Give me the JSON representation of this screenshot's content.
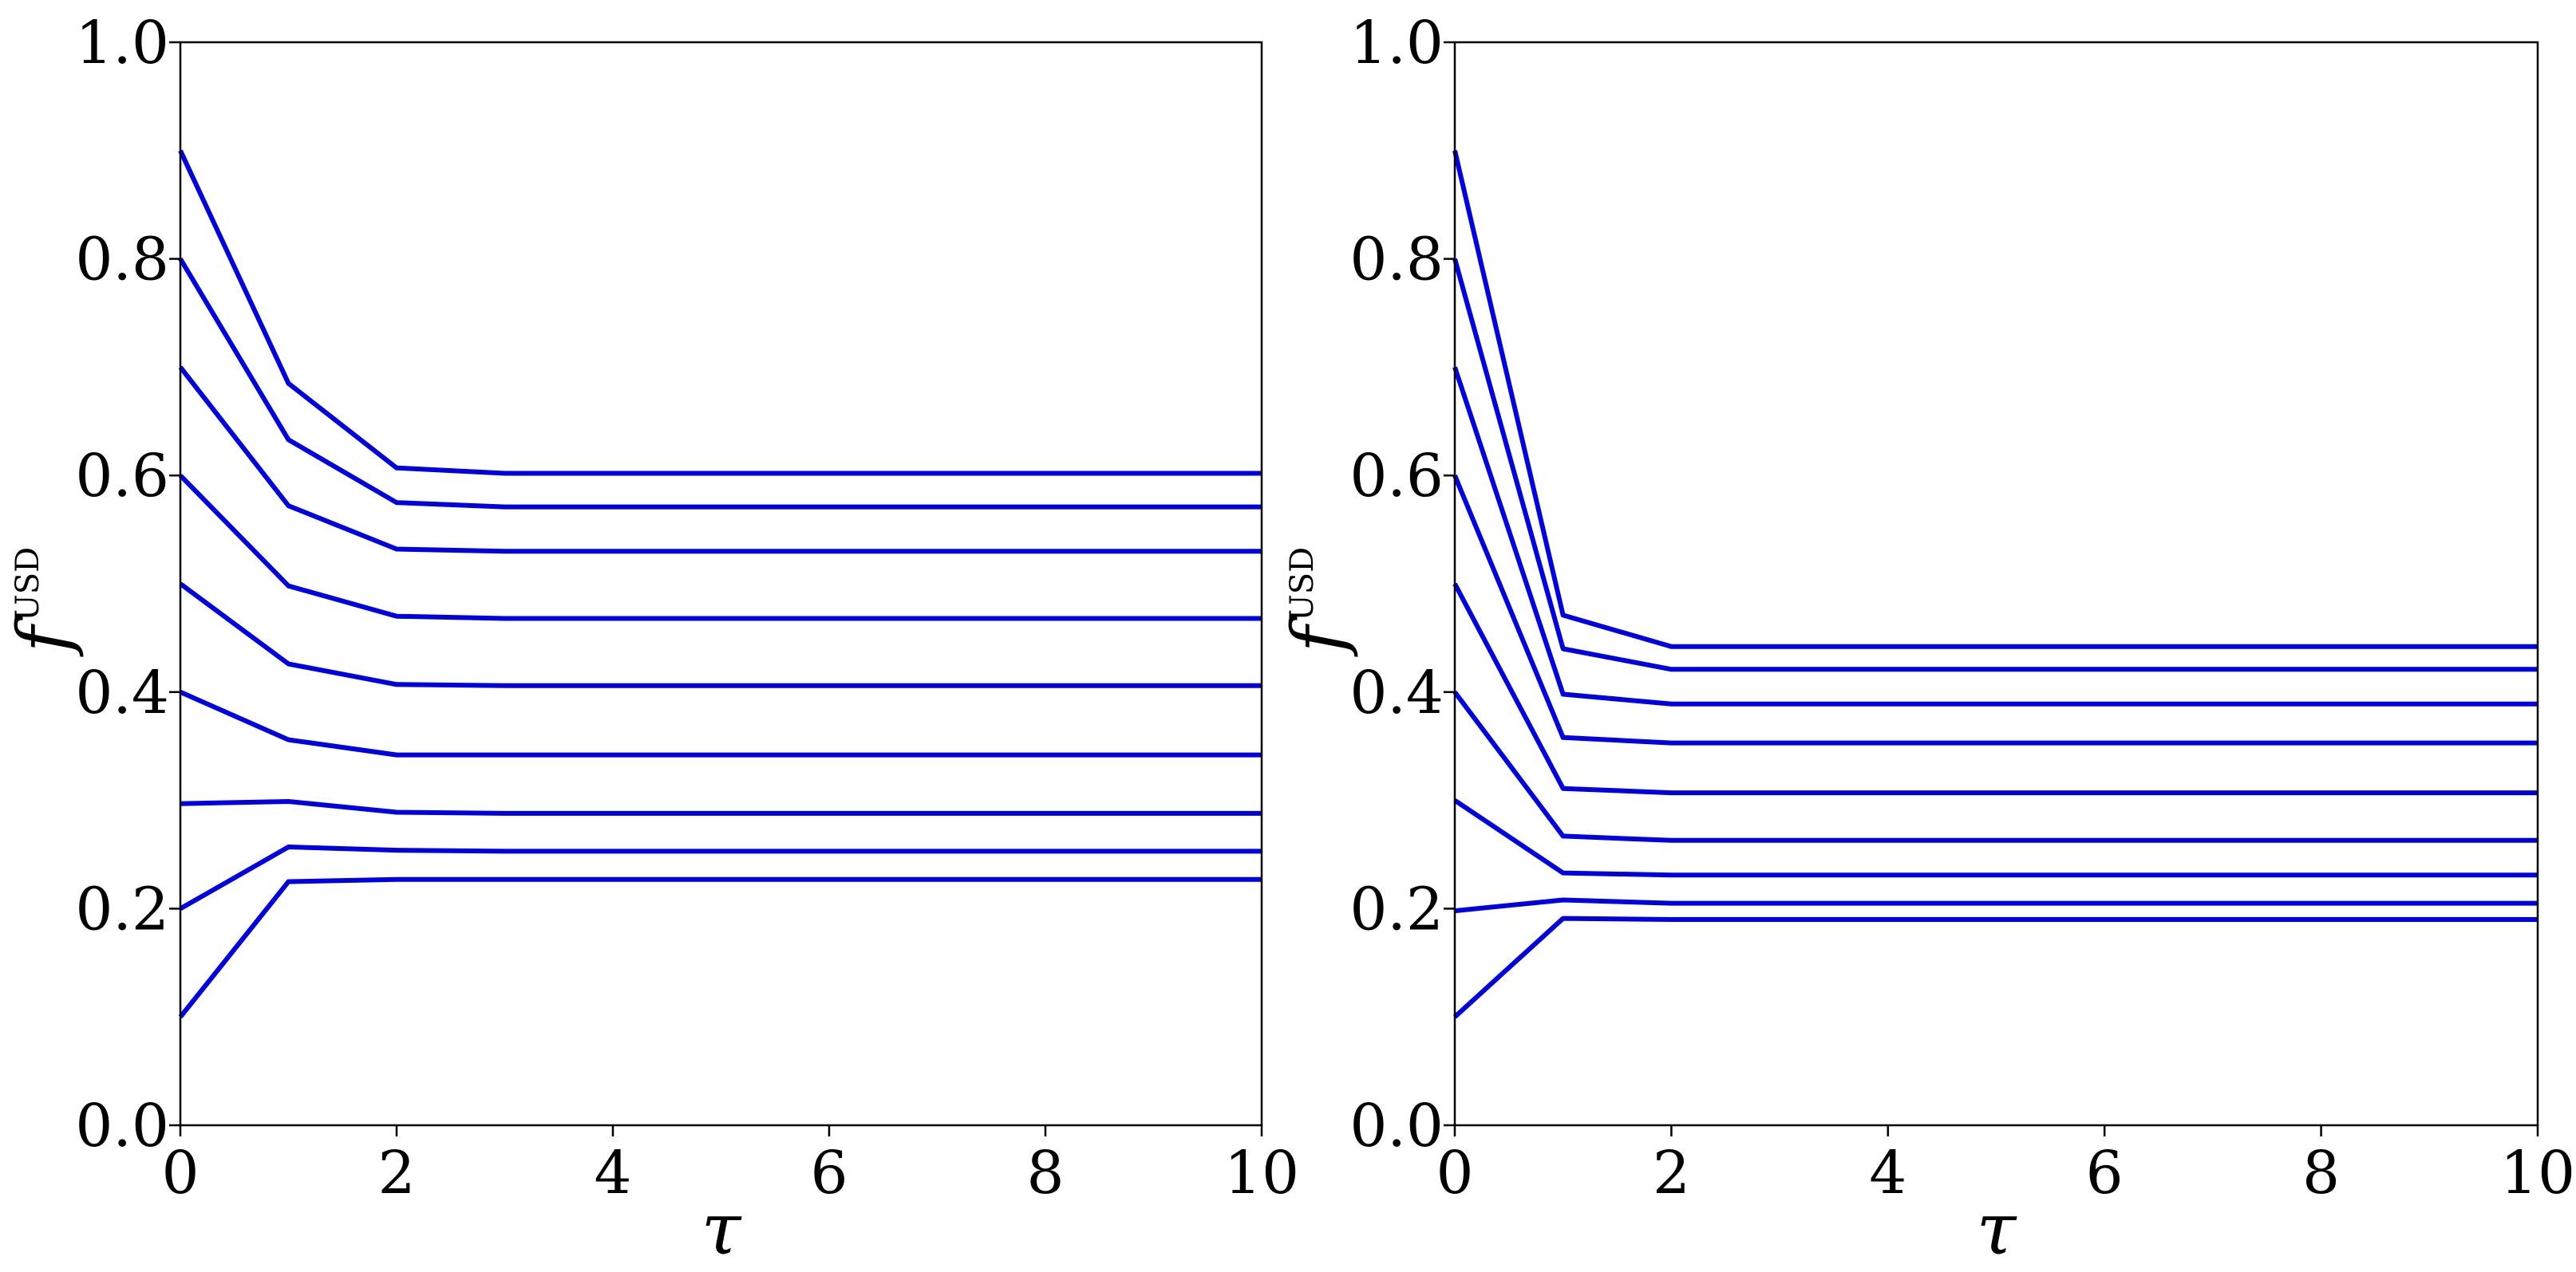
{
  "chart_data": [
    {
      "type": "line",
      "title": "",
      "xlabel": "τ",
      "ylabel": "f",
      "ylabel_superscript": "USD",
      "xlim": [
        0,
        10
      ],
      "ylim": [
        0.0,
        1.0
      ],
      "xticks": [
        "0",
        "2",
        "4",
        "6",
        "8",
        "10"
      ],
      "yticks": [
        "0.0",
        "0.2",
        "0.4",
        "0.6",
        "0.8",
        "1.0"
      ],
      "grid": false,
      "line_color": "#0000e0",
      "x": [
        0,
        1,
        2,
        3,
        4,
        5,
        6,
        7,
        8,
        9,
        10
      ],
      "series": [
        {
          "values": [
            0.9,
            0.685,
            0.607,
            0.602,
            0.602,
            0.602,
            0.602,
            0.602,
            0.602,
            0.602,
            0.602
          ]
        },
        {
          "values": [
            0.8,
            0.633,
            0.575,
            0.571,
            0.571,
            0.571,
            0.571,
            0.571,
            0.571,
            0.571,
            0.571
          ]
        },
        {
          "values": [
            0.7,
            0.572,
            0.532,
            0.53,
            0.53,
            0.53,
            0.53,
            0.53,
            0.53,
            0.53,
            0.53
          ]
        },
        {
          "values": [
            0.6,
            0.498,
            0.47,
            0.468,
            0.468,
            0.468,
            0.468,
            0.468,
            0.468,
            0.468,
            0.468
          ]
        },
        {
          "values": [
            0.5,
            0.426,
            0.407,
            0.406,
            0.406,
            0.406,
            0.406,
            0.406,
            0.406,
            0.406,
            0.406
          ]
        },
        {
          "values": [
            0.4,
            0.356,
            0.342,
            0.342,
            0.342,
            0.342,
            0.342,
            0.342,
            0.342,
            0.342,
            0.342
          ]
        },
        {
          "values": [
            0.297,
            0.299,
            0.289,
            0.288,
            0.288,
            0.288,
            0.288,
            0.288,
            0.288,
            0.288,
            0.288
          ]
        },
        {
          "values": [
            0.2,
            0.257,
            0.254,
            0.253,
            0.253,
            0.253,
            0.253,
            0.253,
            0.253,
            0.253,
            0.253
          ]
        },
        {
          "values": [
            0.1,
            0.225,
            0.227,
            0.227,
            0.227,
            0.227,
            0.227,
            0.227,
            0.227,
            0.227,
            0.227
          ]
        }
      ]
    },
    {
      "type": "line",
      "title": "",
      "xlabel": "τ",
      "ylabel": "f",
      "ylabel_superscript": "USD",
      "xlim": [
        0,
        10
      ],
      "ylim": [
        0.0,
        1.0
      ],
      "xticks": [
        "0",
        "2",
        "4",
        "6",
        "8",
        "10"
      ],
      "yticks": [
        "0.0",
        "0.2",
        "0.4",
        "0.6",
        "0.8",
        "1.0"
      ],
      "grid": false,
      "line_color": "#0000e0",
      "x": [
        0,
        1,
        2,
        3,
        4,
        5,
        6,
        7,
        8,
        9,
        10
      ],
      "series": [
        {
          "values": [
            0.9,
            0.471,
            0.442,
            0.442,
            0.442,
            0.442,
            0.442,
            0.442,
            0.442,
            0.442,
            0.442
          ]
        },
        {
          "values": [
            0.8,
            0.44,
            0.421,
            0.421,
            0.421,
            0.421,
            0.421,
            0.421,
            0.421,
            0.421,
            0.421
          ]
        },
        {
          "values": [
            0.7,
            0.398,
            0.389,
            0.389,
            0.389,
            0.389,
            0.389,
            0.389,
            0.389,
            0.389,
            0.389
          ]
        },
        {
          "values": [
            0.6,
            0.358,
            0.353,
            0.353,
            0.353,
            0.353,
            0.353,
            0.353,
            0.353,
            0.353,
            0.353
          ]
        },
        {
          "values": [
            0.5,
            0.311,
            0.307,
            0.307,
            0.307,
            0.307,
            0.307,
            0.307,
            0.307,
            0.307,
            0.307
          ]
        },
        {
          "values": [
            0.4,
            0.267,
            0.263,
            0.263,
            0.263,
            0.263,
            0.263,
            0.263,
            0.263,
            0.263,
            0.263
          ]
        },
        {
          "values": [
            0.3,
            0.233,
            0.231,
            0.231,
            0.231,
            0.231,
            0.231,
            0.231,
            0.231,
            0.231,
            0.231
          ]
        },
        {
          "values": [
            0.198,
            0.208,
            0.205,
            0.205,
            0.205,
            0.205,
            0.205,
            0.205,
            0.205,
            0.205,
            0.205
          ]
        },
        {
          "values": [
            0.1,
            0.191,
            0.19,
            0.19,
            0.19,
            0.19,
            0.19,
            0.19,
            0.19,
            0.19,
            0.19
          ]
        }
      ]
    }
  ]
}
